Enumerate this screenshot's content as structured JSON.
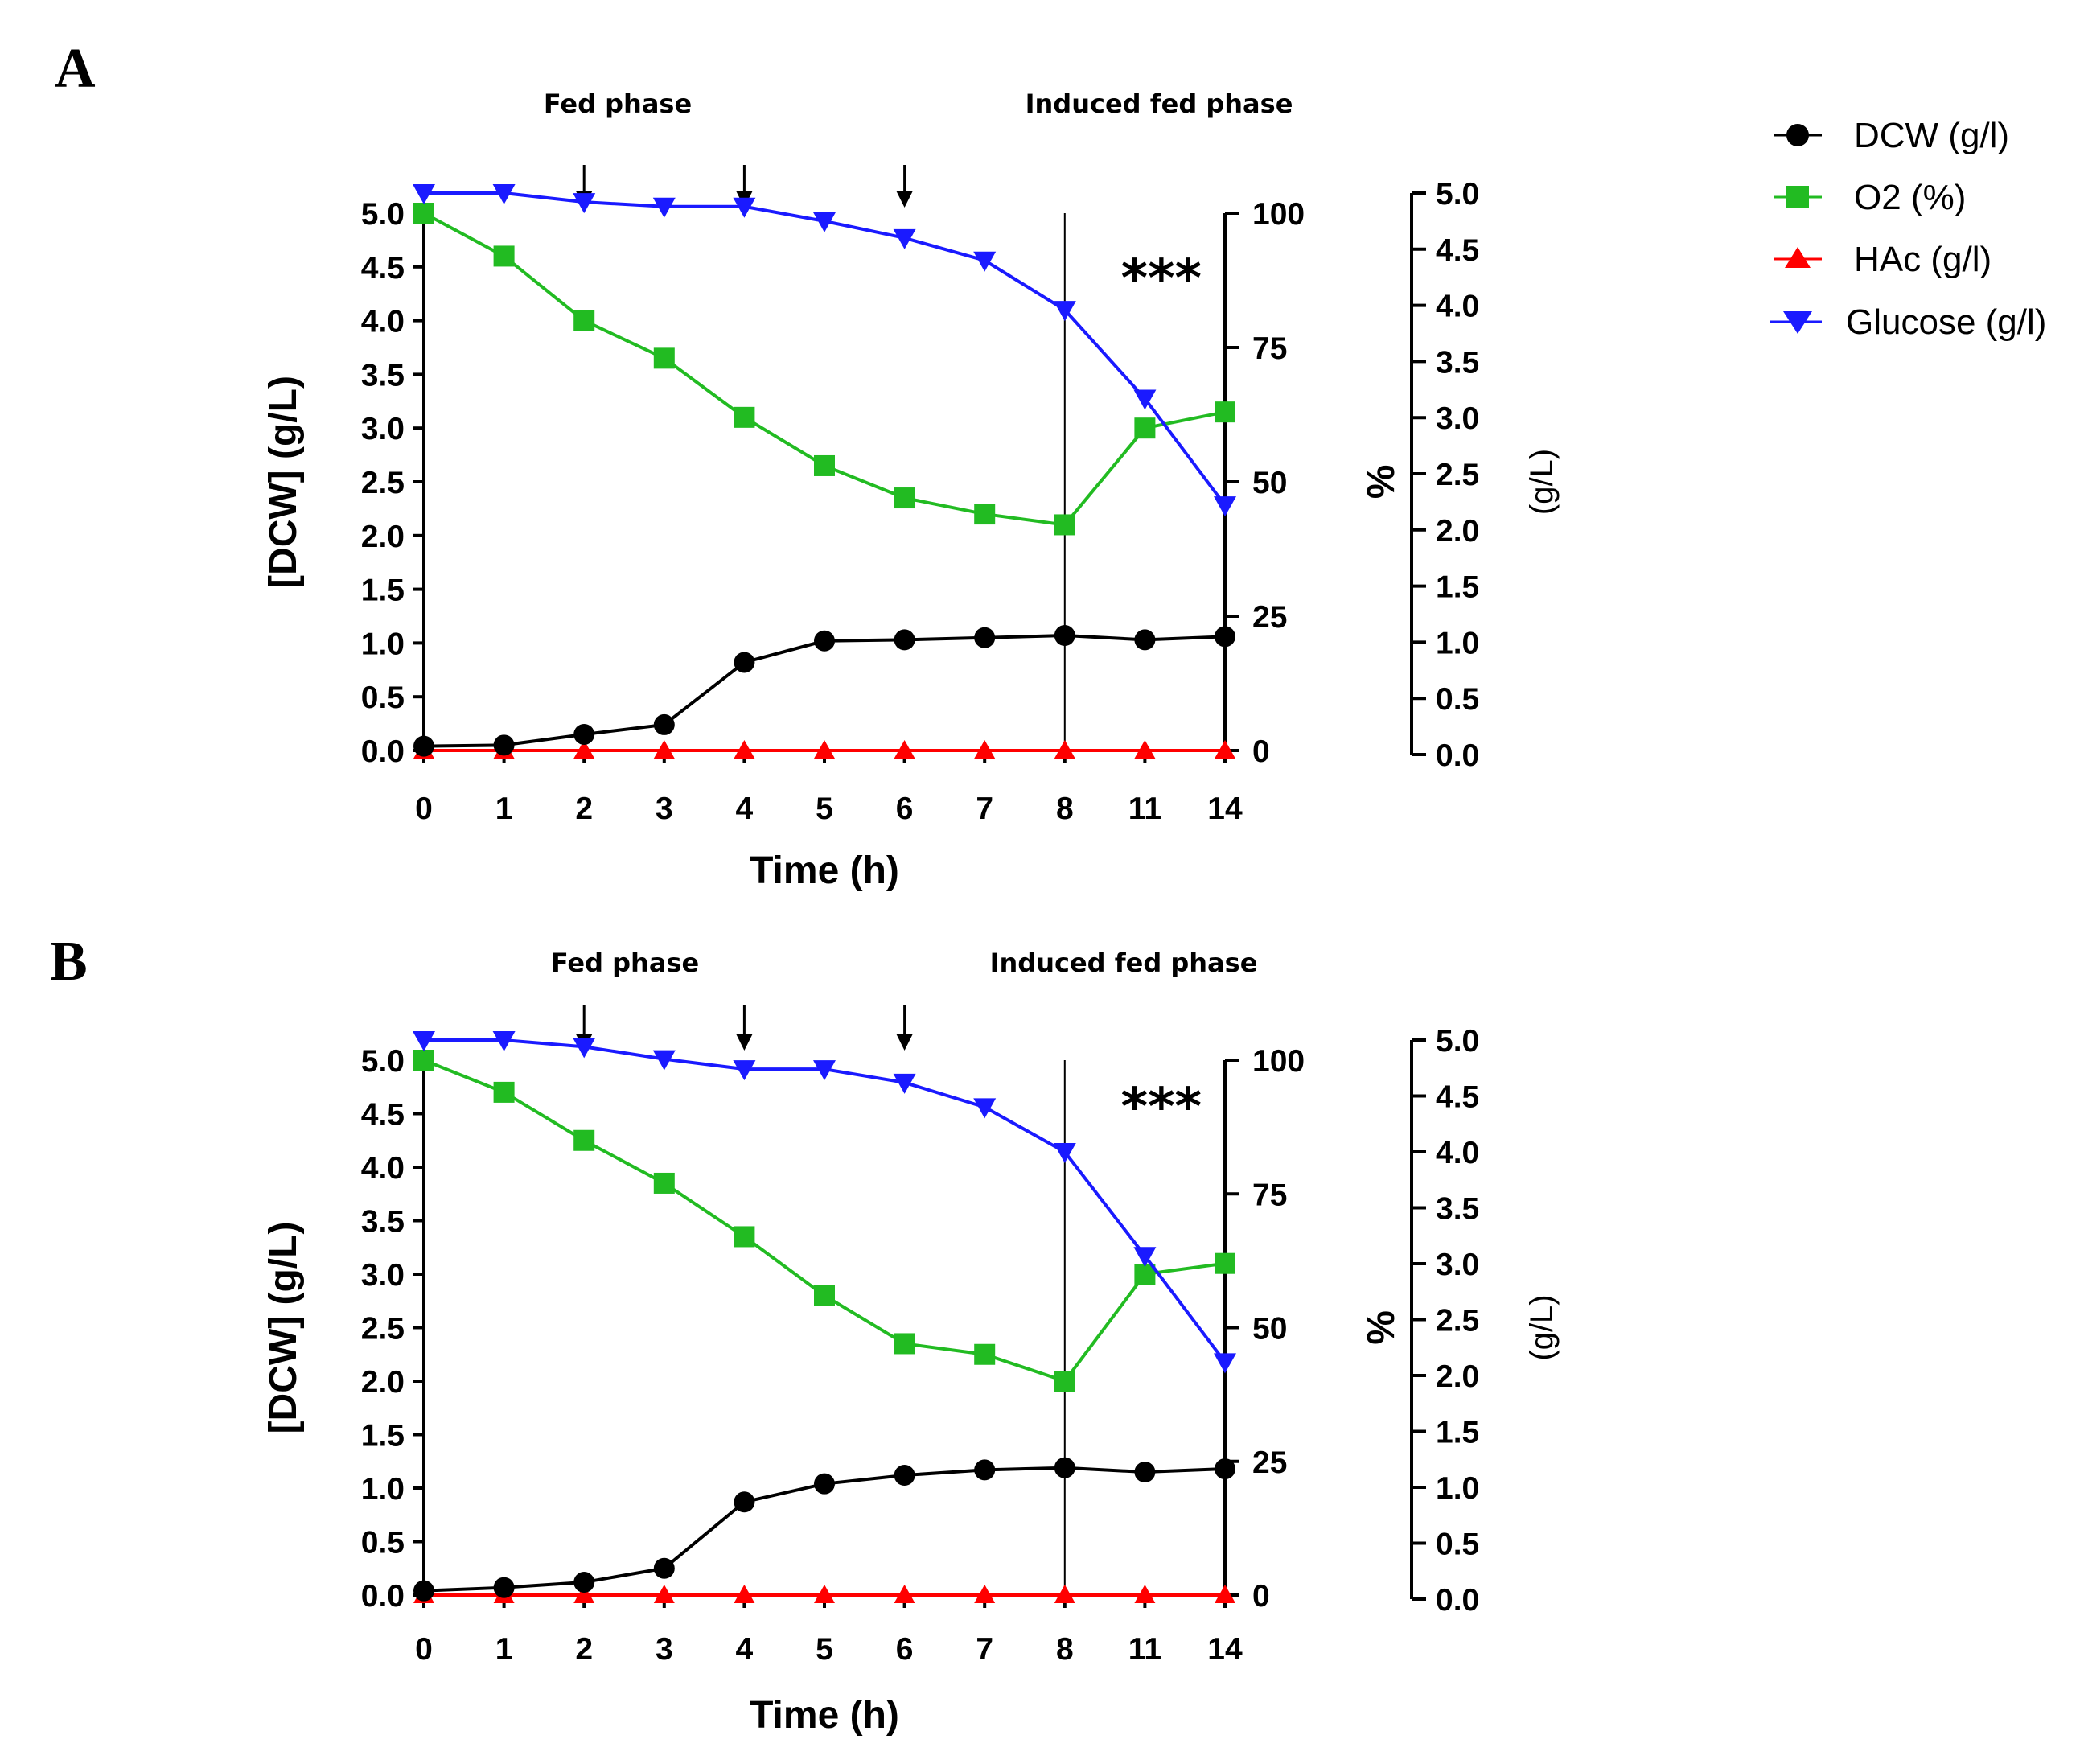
{
  "legend": [
    {
      "label": "DCW (g/l)",
      "color": "#000000",
      "marker": "circle"
    },
    {
      "label": "O2 (%)",
      "color": "#22bb22",
      "marker": "square"
    },
    {
      "label": "HAc (g/l)",
      "color": "#ff0000",
      "marker": "triangle-up"
    },
    {
      "label": "Glucose (g/l)",
      "color": "#1a1aff",
      "marker": "triangle-down"
    }
  ],
  "chart_data": [
    {
      "panel": "A",
      "type": "line",
      "phase_labels": [
        "Fed phase",
        "Induced fed phase"
      ],
      "significance": "***",
      "feed_arrows_at": [
        "2",
        "4",
        "6"
      ],
      "induction_line_at": "8",
      "categories": [
        "0",
        "1",
        "2",
        "3",
        "4",
        "5",
        "6",
        "7",
        "8",
        "11",
        "14"
      ],
      "xlabel": "Time (h)",
      "ylabel": "[DCW] (g/L)",
      "ylabel_mid": "%",
      "ylabel_right": "(g/L)",
      "y_left": {
        "ylim": [
          0,
          5
        ],
        "ticks": [
          "0.0",
          "0.5",
          "1.0",
          "1.5",
          "2.0",
          "2.5",
          "3.0",
          "3.5",
          "4.0",
          "4.5",
          "5.0"
        ]
      },
      "y_mid": {
        "ylim": [
          0,
          100
        ],
        "ticks": [
          "0",
          "25",
          "50",
          "75",
          "100"
        ]
      },
      "y_right": {
        "ylim": [
          0,
          5
        ],
        "ticks": [
          "0.0",
          "0.5",
          "1.0",
          "1.5",
          "2.0",
          "2.5",
          "3.0",
          "3.5",
          "4.0",
          "4.5",
          "5.0"
        ]
      },
      "series": [
        {
          "name": "DCW (g/l)",
          "axis": "left",
          "values": [
            0.04,
            0.05,
            0.15,
            0.24,
            0.82,
            1.02,
            1.03,
            1.05,
            1.07,
            1.03,
            1.06
          ]
        },
        {
          "name": "O2 (%)",
          "axis": "mid",
          "values": [
            100,
            92,
            80,
            73,
            62,
            53,
            47,
            44,
            42,
            60,
            63
          ]
        },
        {
          "name": "HAc (g/l)",
          "axis": "left",
          "values": [
            0,
            0,
            0,
            0,
            0,
            0,
            0,
            0,
            0,
            0,
            0
          ]
        },
        {
          "name": "Glucose (g/l)",
          "axis": "right",
          "values": [
            5.0,
            5.0,
            4.92,
            4.88,
            4.88,
            4.75,
            4.6,
            4.4,
            3.96,
            3.17,
            2.22
          ]
        }
      ]
    },
    {
      "panel": "B",
      "type": "line",
      "phase_labels": [
        "Fed phase",
        "Induced fed phase"
      ],
      "significance": "***",
      "feed_arrows_at": [
        "2",
        "4",
        "6"
      ],
      "induction_line_at": "8",
      "categories": [
        "0",
        "1",
        "2",
        "3",
        "4",
        "5",
        "6",
        "7",
        "8",
        "11",
        "14"
      ],
      "xlabel": "Time (h)",
      "ylabel": "[DCW] (g/L)",
      "ylabel_mid": "%",
      "ylabel_right": "(g/L)",
      "y_left": {
        "ylim": [
          0,
          5
        ],
        "ticks": [
          "0.0",
          "0.5",
          "1.0",
          "1.5",
          "2.0",
          "2.5",
          "3.0",
          "3.5",
          "4.0",
          "4.5",
          "5.0"
        ]
      },
      "y_mid": {
        "ylim": [
          0,
          100
        ],
        "ticks": [
          "0",
          "25",
          "50",
          "75",
          "100"
        ]
      },
      "y_right": {
        "ylim": [
          0,
          5
        ],
        "ticks": [
          "0.0",
          "0.5",
          "1.0",
          "1.5",
          "2.0",
          "2.5",
          "3.0",
          "3.5",
          "4.0",
          "4.5",
          "5.0"
        ]
      },
      "series": [
        {
          "name": "DCW (g/l)",
          "axis": "left",
          "values": [
            0.04,
            0.07,
            0.12,
            0.25,
            0.87,
            1.04,
            1.12,
            1.17,
            1.19,
            1.15,
            1.18
          ]
        },
        {
          "name": "O2 (%)",
          "axis": "mid",
          "values": [
            100,
            94,
            85,
            77,
            67,
            56,
            47,
            45,
            40,
            60,
            62
          ]
        },
        {
          "name": "HAc (g/l)",
          "axis": "left",
          "values": [
            0,
            0,
            0,
            0,
            0,
            0,
            0,
            0,
            0,
            0,
            0
          ]
        },
        {
          "name": "Glucose (g/l)",
          "axis": "right",
          "values": [
            5.0,
            5.0,
            4.94,
            4.83,
            4.74,
            4.74,
            4.62,
            4.4,
            4.0,
            3.07,
            2.12
          ]
        }
      ]
    }
  ]
}
